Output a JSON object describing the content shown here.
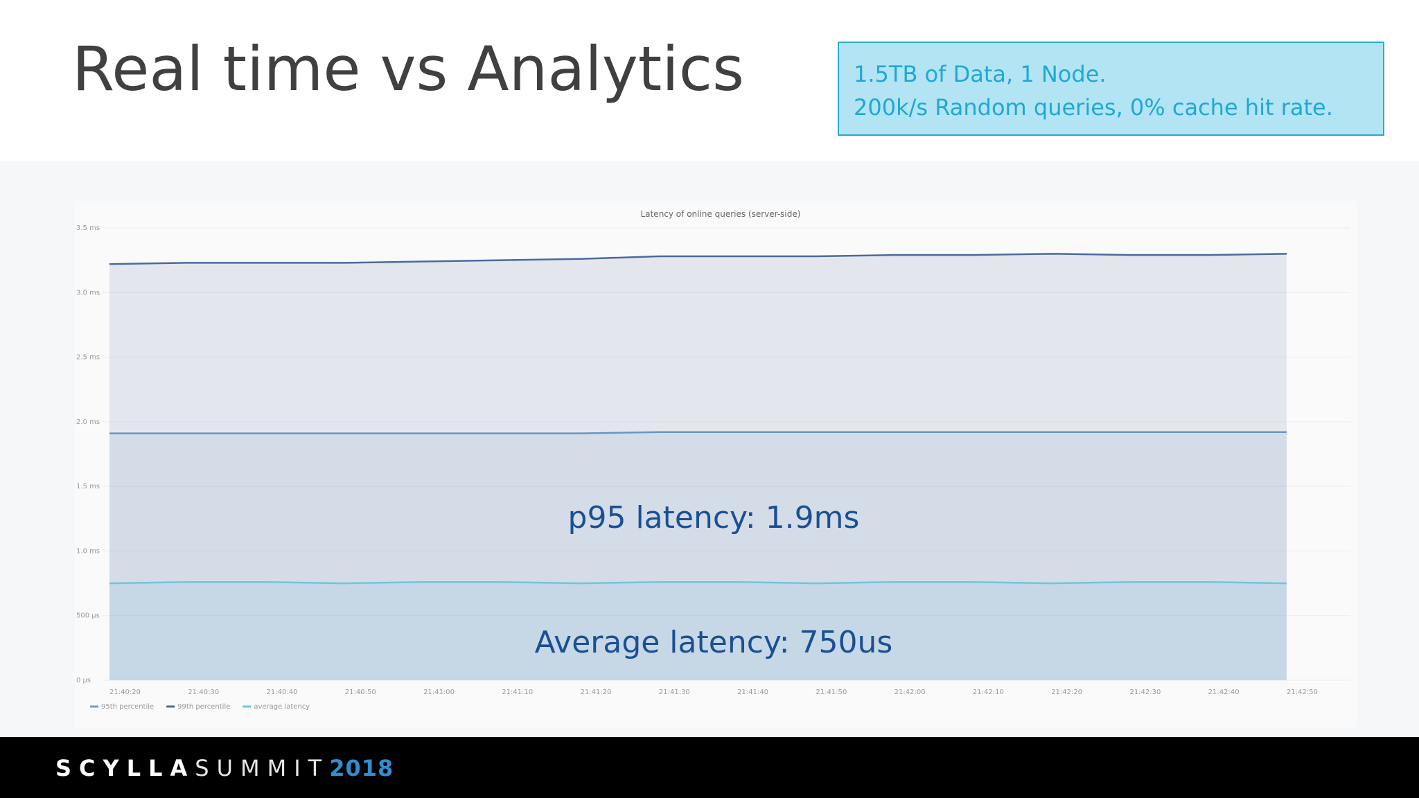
{
  "title": "Real time vs Analytics",
  "info": [
    "1.5TB of Data, 1 Node.",
    "200k/s Random queries, 0% cache hit rate."
  ],
  "footer": {
    "brand": "SCYLLA",
    "event": "SUMMIT",
    "year": "2018"
  },
  "chart_data": {
    "type": "line",
    "title": "Latency of online queries (server-side)",
    "categories": [
      "21:40:20",
      "21:40:30",
      "21:40:40",
      "21:40:50",
      "21:41:00",
      "21:41:10",
      "21:41:20",
      "21:41:30",
      "21:41:40",
      "21:41:50",
      "21:42:00",
      "21:42:10",
      "21:42:20",
      "21:42:30",
      "21:42:40",
      "21:42:50"
    ],
    "series": [
      {
        "name": "95th percentile",
        "color": "#6e9cc6",
        "values": [
          1.91,
          1.91,
          1.91,
          1.91,
          1.91,
          1.91,
          1.91,
          1.92,
          1.92,
          1.92,
          1.92,
          1.92,
          1.92,
          1.92,
          1.92,
          1.92
        ]
      },
      {
        "name": "99th percentile",
        "color": "#4a6a9e",
        "values": [
          3.22,
          3.23,
          3.23,
          3.23,
          3.24,
          3.25,
          3.26,
          3.28,
          3.28,
          3.28,
          3.29,
          3.29,
          3.3,
          3.29,
          3.29,
          3.3
        ]
      },
      {
        "name": "average latency",
        "color": "#74c4dc",
        "values": [
          0.75,
          0.76,
          0.76,
          0.75,
          0.76,
          0.76,
          0.75,
          0.76,
          0.76,
          0.75,
          0.76,
          0.76,
          0.75,
          0.76,
          0.76,
          0.75
        ]
      }
    ],
    "ylim": [
      0,
      3.5
    ],
    "yticks": [
      {
        "value": 0,
        "label": "0 µs"
      },
      {
        "value": 0.5,
        "label": "500 µs"
      },
      {
        "value": 1,
        "label": "1.0 ms"
      },
      {
        "value": 1.5,
        "label": "1.5 ms"
      },
      {
        "value": 2,
        "label": "2.0 ms"
      },
      {
        "value": 2.5,
        "label": "2.5 ms"
      },
      {
        "value": 3,
        "label": "3.0 ms"
      },
      {
        "value": 3.5,
        "label": "3.5 ms"
      }
    ],
    "grid": true,
    "annotations": [
      "p95 latency: 1.9ms",
      "Average latency: 750us"
    ]
  }
}
